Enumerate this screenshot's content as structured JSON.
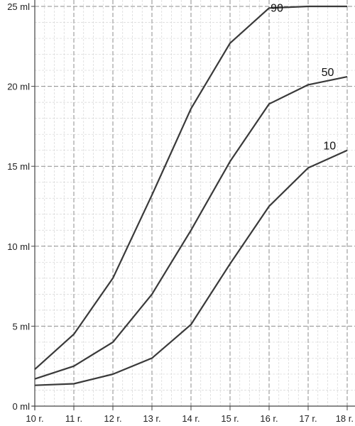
{
  "chart_data": {
    "type": "line",
    "x": [
      10,
      11,
      12,
      13,
      14,
      15,
      16,
      17,
      18
    ],
    "x_tick_labels": [
      "10 r.",
      "11 r.",
      "12 r.",
      "13 r.",
      "14 r.",
      "15 r.",
      "16 r.",
      "17 r.",
      "18 r."
    ],
    "y_tick_labels": [
      "0 ml",
      "5 ml",
      "10 ml",
      "15 ml",
      "20 ml",
      "25 ml"
    ],
    "y_ticks": [
      0,
      5,
      10,
      15,
      20,
      25
    ],
    "xlim": [
      10,
      18.2
    ],
    "ylim": [
      0,
      25.4
    ],
    "grid": true,
    "line_color": "#3a3a3a",
    "series": [
      {
        "name": "90",
        "values": [
          2.3,
          4.5,
          8.0,
          13.2,
          18.6,
          22.7,
          24.9,
          25.0,
          25.0
        ]
      },
      {
        "name": "50",
        "values": [
          1.7,
          2.5,
          4.0,
          7.0,
          11.0,
          15.3,
          18.9,
          20.1,
          20.6
        ]
      },
      {
        "name": "10",
        "values": [
          1.3,
          1.4,
          2.0,
          3.0,
          5.1,
          8.9,
          12.5,
          14.9,
          16.0
        ]
      }
    ]
  }
}
